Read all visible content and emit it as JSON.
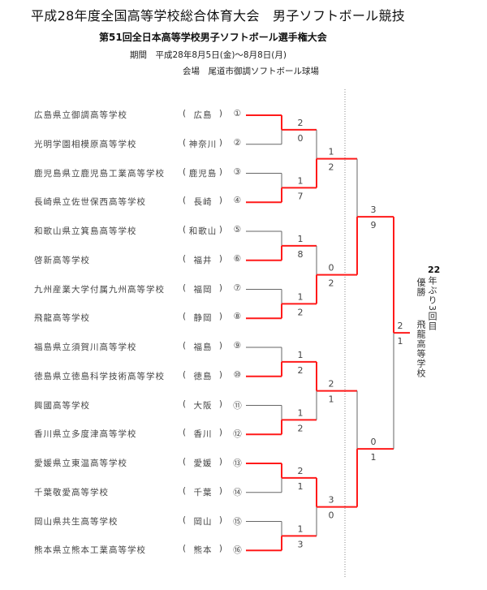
{
  "header": {
    "title": "平成28年度全国高等学校総合体育大会　男子ソフトボール競技",
    "subtitle": "第51回全日本高等学校男子ソフトボール選手権大会",
    "period": "期間　平成28年8月5日(金)～8月8日(月)",
    "venue": "会場　尾道市御調ソフトボール球場"
  },
  "teams": [
    {
      "name": "広島県立御調高等学校",
      "pref": "広島",
      "num": "①"
    },
    {
      "name": "光明学園相模原高等学校",
      "pref": "神奈川",
      "num": "②"
    },
    {
      "name": "鹿児島県立鹿児島工業高等学校",
      "pref": "鹿児島",
      "num": "③"
    },
    {
      "name": "長崎県立佐世保西高等学校",
      "pref": "長崎",
      "num": "④"
    },
    {
      "name": "和歌山県立箕島高等学校",
      "pref": "和歌山",
      "num": "⑤"
    },
    {
      "name": "啓新高等学校",
      "pref": "福井",
      "num": "⑥"
    },
    {
      "name": "九州産業大学付属九州高等学校",
      "pref": "福岡",
      "num": "⑦"
    },
    {
      "name": "飛龍高等学校",
      "pref": "静岡",
      "num": "⑧"
    },
    {
      "name": "福島県立須賀川高等学校",
      "pref": "福島",
      "num": "⑨"
    },
    {
      "name": "徳島県立徳島科学技術高等学校",
      "pref": "徳島",
      "num": "⑩"
    },
    {
      "name": "興國高等学校",
      "pref": "大阪",
      "num": "⑪"
    },
    {
      "name": "香川県立多度津高等学校",
      "pref": "香川",
      "num": "⑫"
    },
    {
      "name": "愛媛県立東温高等学校",
      "pref": "愛媛",
      "num": "⑬"
    },
    {
      "name": "千葉敬愛高等学校",
      "pref": "千葉",
      "num": "⑭"
    },
    {
      "name": "岡山県共生高等学校",
      "pref": "岡山",
      "num": "⑮"
    },
    {
      "name": "熊本県立熊本工業高等学校",
      "pref": "熊本",
      "num": "⑯"
    }
  ],
  "rounds": [
    [
      {
        "top": "2",
        "bottom": "0",
        "winner": "top"
      },
      {
        "top": "1",
        "bottom": "7",
        "winner": "bottom"
      },
      {
        "top": "1",
        "bottom": "8",
        "winner": "bottom"
      },
      {
        "top": "1",
        "bottom": "2",
        "winner": "bottom"
      },
      {
        "top": "1",
        "bottom": "2",
        "winner": "bottom"
      },
      {
        "top": "1",
        "bottom": "2",
        "winner": "bottom"
      },
      {
        "top": "2",
        "bottom": "1",
        "winner": "top"
      },
      {
        "top": "1",
        "bottom": "3",
        "winner": "bottom"
      }
    ],
    [
      {
        "top": "1",
        "bottom": "2",
        "winner": "bottom"
      },
      {
        "top": "0",
        "bottom": "2",
        "winner": "bottom"
      },
      {
        "top": "2",
        "bottom": "1",
        "winner": "top"
      },
      {
        "top": "3",
        "bottom": "0",
        "winner": "top"
      }
    ],
    [
      {
        "top": "3",
        "bottom": "9",
        "winner": "bottom"
      },
      {
        "top": "0",
        "bottom": "1",
        "winner": "bottom"
      }
    ],
    [
      {
        "top": "2",
        "bottom": "1",
        "winner": "top"
      }
    ]
  ],
  "champion": {
    "years": "22",
    "note": "年ぶり3回目",
    "label": "優勝",
    "school": "飛龍高等学校"
  },
  "colors": {
    "winner_line": "#ff1a1a",
    "loser_line": "#666666",
    "text": "#444444"
  }
}
